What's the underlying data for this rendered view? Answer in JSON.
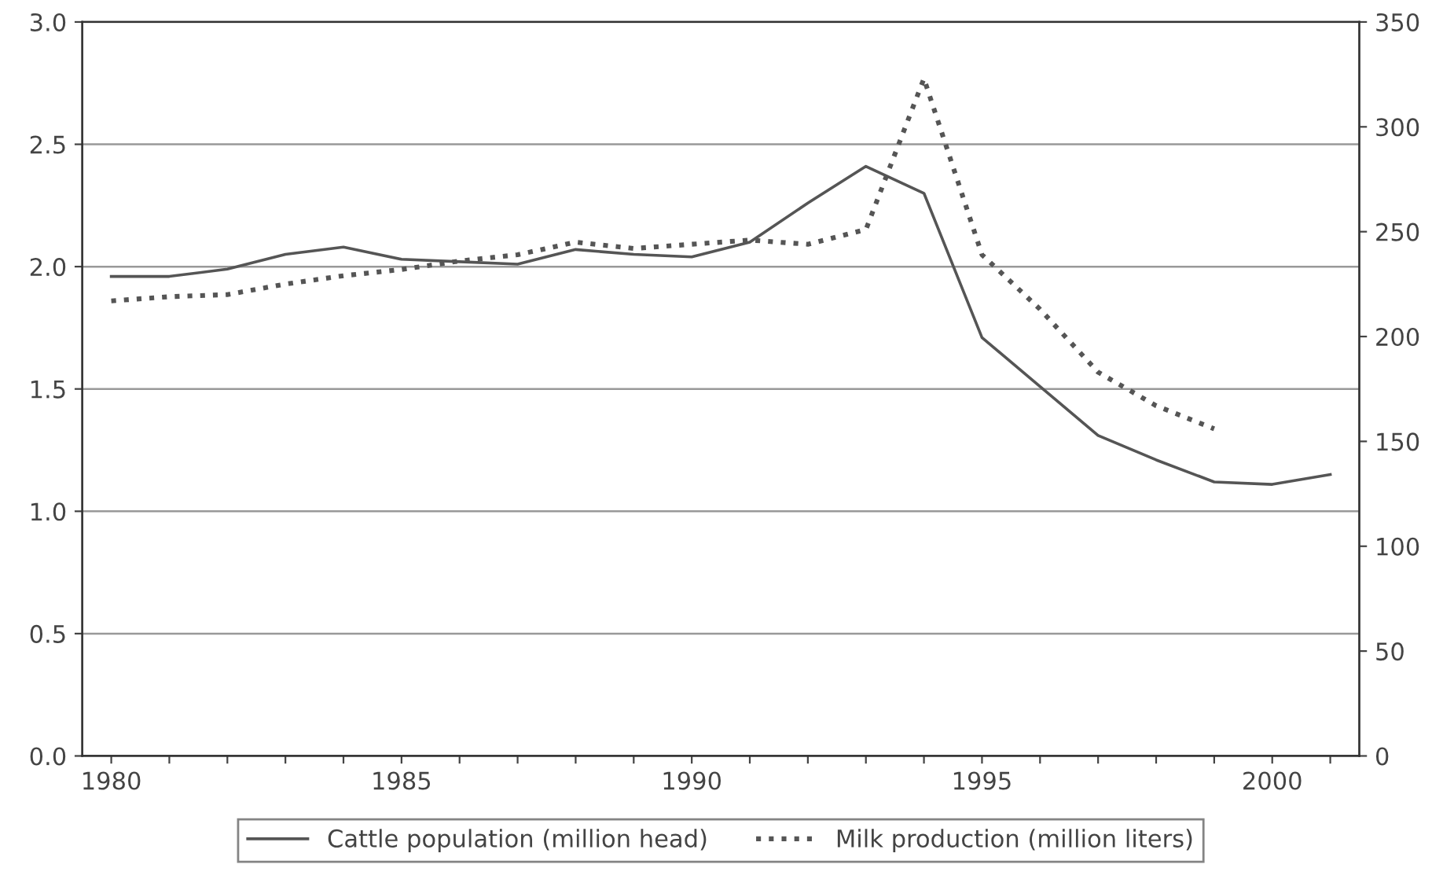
{
  "chart_data": {
    "type": "line",
    "x": [
      1980,
      1981,
      1982,
      1983,
      1984,
      1985,
      1986,
      1987,
      1988,
      1989,
      1990,
      1991,
      1992,
      1993,
      1994,
      1995,
      1996,
      1997,
      1998,
      1999,
      2000,
      2001
    ],
    "series": [
      {
        "name": "Cattle population (million head)",
        "color": "#555555",
        "line_style": "solid",
        "values": [
          1.96,
          1.96,
          1.99,
          2.05,
          2.08,
          2.03,
          2.02,
          2.01,
          2.07,
          2.05,
          2.04,
          2.1,
          2.26,
          2.41,
          2.3,
          1.71,
          1.51,
          1.31,
          1.21,
          1.12,
          1.11,
          1.15
        ]
      },
      {
        "name": "Milk production (million liters)",
        "color": "#555555",
        "line_style": "dotted",
        "axis": "y2",
        "values": [
          217,
          219,
          220,
          225,
          229,
          232,
          236,
          239,
          245,
          242,
          244,
          246,
          244,
          251,
          323,
          239,
          213,
          183,
          167,
          156,
          null,
          null
        ]
      }
    ],
    "xlim": [
      1979.5,
      2001.5
    ],
    "xticks": [
      1980,
      {
        "value": 1981,
        "label": null
      },
      {
        "value": 1982,
        "label": null
      },
      {
        "value": 1983,
        "label": null
      },
      {
        "value": 1984,
        "label": null
      },
      1985,
      {
        "value": 1986,
        "label": null
      },
      {
        "value": 1987,
        "label": null
      },
      {
        "value": 1988,
        "label": null
      },
      {
        "value": 1989,
        "label": null
      },
      1990,
      {
        "value": 1991,
        "label": null
      },
      {
        "value": 1992,
        "label": null
      },
      {
        "value": 1993,
        "label": null
      },
      {
        "value": 1994,
        "label": null
      },
      1995,
      {
        "value": 1996,
        "label": null
      },
      {
        "value": 1997,
        "label": null
      },
      {
        "value": 1998,
        "label": null
      },
      {
        "value": 1999,
        "label": null
      },
      2000,
      {
        "value": 2001,
        "label": null
      }
    ],
    "ylim": [
      0,
      3
    ],
    "yticks": [
      {
        "value": 0,
        "label": "0.0"
      },
      {
        "value": 0.5,
        "label": "0.5"
      },
      {
        "value": 1,
        "label": "1.0"
      },
      {
        "value": 1.5,
        "label": "1.5"
      },
      {
        "value": 2,
        "label": "2.0"
      },
      {
        "value": 2.5,
        "label": "2.5"
      },
      {
        "value": 3,
        "label": "3.0"
      }
    ],
    "y2lim": [
      0,
      350
    ],
    "y2ticks": [
      0,
      50,
      100,
      150,
      200,
      250,
      300,
      350
    ],
    "grid": "y",
    "legend": "bottom",
    "marker": "none"
  }
}
